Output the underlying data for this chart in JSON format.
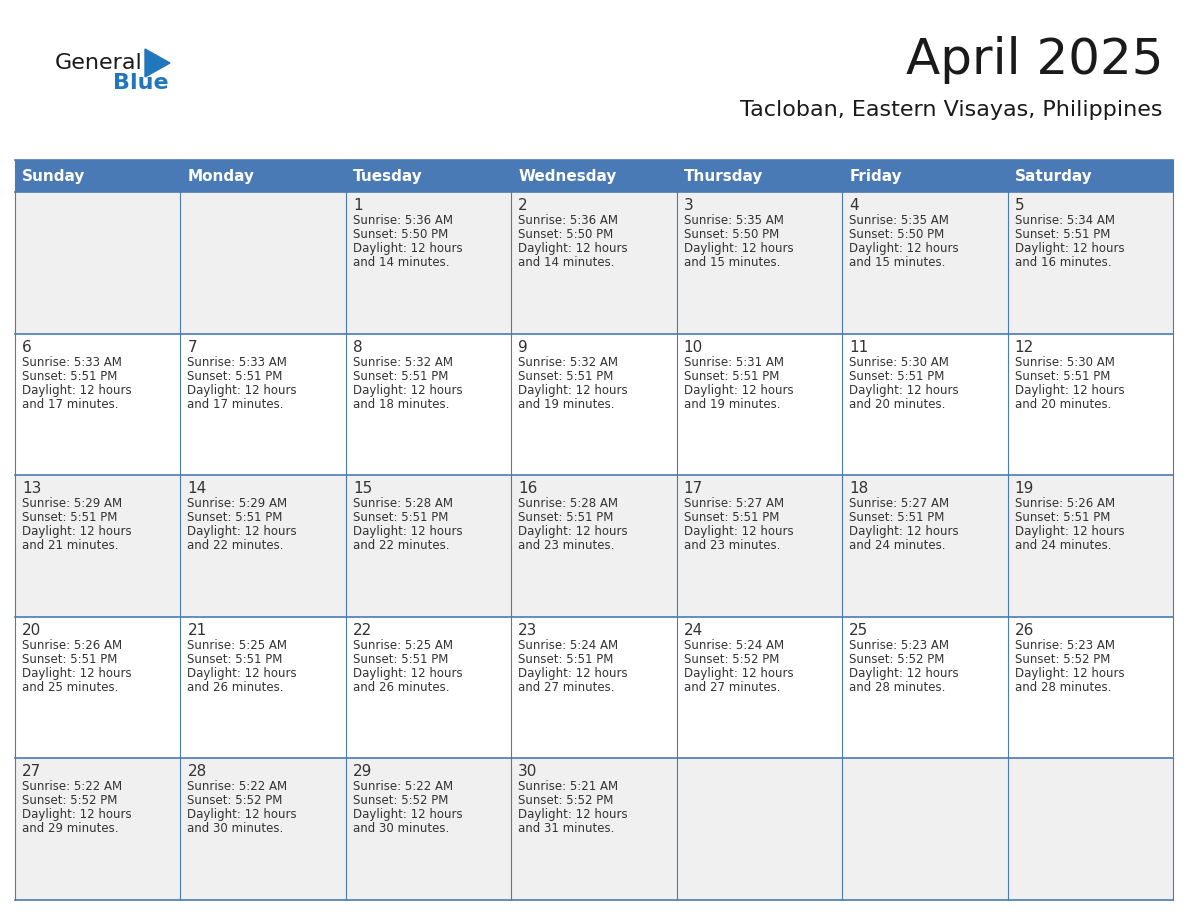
{
  "title": "April 2025",
  "subtitle": "Tacloban, Eastern Visayas, Philippines",
  "header_bg": "#4a7ab5",
  "header_text": "#ffffff",
  "day_names": [
    "Sunday",
    "Monday",
    "Tuesday",
    "Wednesday",
    "Thursday",
    "Friday",
    "Saturday"
  ],
  "row_bg_light": "#f0f0f0",
  "row_bg_white": "#ffffff",
  "cell_border": "#4a7ab5",
  "text_color": "#333333",
  "logo_black": "#1a1a1a",
  "logo_blue": "#2176bc",
  "calendar_data": [
    [
      null,
      null,
      {
        "day": 1,
        "sunrise": "5:36 AM",
        "sunset": "5:50 PM",
        "minutes": "14"
      },
      {
        "day": 2,
        "sunrise": "5:36 AM",
        "sunset": "5:50 PM",
        "minutes": "14"
      },
      {
        "day": 3,
        "sunrise": "5:35 AM",
        "sunset": "5:50 PM",
        "minutes": "15"
      },
      {
        "day": 4,
        "sunrise": "5:35 AM",
        "sunset": "5:50 PM",
        "minutes": "15"
      },
      {
        "day": 5,
        "sunrise": "5:34 AM",
        "sunset": "5:51 PM",
        "minutes": "16"
      }
    ],
    [
      {
        "day": 6,
        "sunrise": "5:33 AM",
        "sunset": "5:51 PM",
        "minutes": "17"
      },
      {
        "day": 7,
        "sunrise": "5:33 AM",
        "sunset": "5:51 PM",
        "minutes": "17"
      },
      {
        "day": 8,
        "sunrise": "5:32 AM",
        "sunset": "5:51 PM",
        "minutes": "18"
      },
      {
        "day": 9,
        "sunrise": "5:32 AM",
        "sunset": "5:51 PM",
        "minutes": "19"
      },
      {
        "day": 10,
        "sunrise": "5:31 AM",
        "sunset": "5:51 PM",
        "minutes": "19"
      },
      {
        "day": 11,
        "sunrise": "5:30 AM",
        "sunset": "5:51 PM",
        "minutes": "20"
      },
      {
        "day": 12,
        "sunrise": "5:30 AM",
        "sunset": "5:51 PM",
        "minutes": "20"
      }
    ],
    [
      {
        "day": 13,
        "sunrise": "5:29 AM",
        "sunset": "5:51 PM",
        "minutes": "21"
      },
      {
        "day": 14,
        "sunrise": "5:29 AM",
        "sunset": "5:51 PM",
        "minutes": "22"
      },
      {
        "day": 15,
        "sunrise": "5:28 AM",
        "sunset": "5:51 PM",
        "minutes": "22"
      },
      {
        "day": 16,
        "sunrise": "5:28 AM",
        "sunset": "5:51 PM",
        "minutes": "23"
      },
      {
        "day": 17,
        "sunrise": "5:27 AM",
        "sunset": "5:51 PM",
        "minutes": "23"
      },
      {
        "day": 18,
        "sunrise": "5:27 AM",
        "sunset": "5:51 PM",
        "minutes": "24"
      },
      {
        "day": 19,
        "sunrise": "5:26 AM",
        "sunset": "5:51 PM",
        "minutes": "24"
      }
    ],
    [
      {
        "day": 20,
        "sunrise": "5:26 AM",
        "sunset": "5:51 PM",
        "minutes": "25"
      },
      {
        "day": 21,
        "sunrise": "5:25 AM",
        "sunset": "5:51 PM",
        "minutes": "26"
      },
      {
        "day": 22,
        "sunrise": "5:25 AM",
        "sunset": "5:51 PM",
        "minutes": "26"
      },
      {
        "day": 23,
        "sunrise": "5:24 AM",
        "sunset": "5:51 PM",
        "minutes": "27"
      },
      {
        "day": 24,
        "sunrise": "5:24 AM",
        "sunset": "5:52 PM",
        "minutes": "27"
      },
      {
        "day": 25,
        "sunrise": "5:23 AM",
        "sunset": "5:52 PM",
        "minutes": "28"
      },
      {
        "day": 26,
        "sunrise": "5:23 AM",
        "sunset": "5:52 PM",
        "minutes": "28"
      }
    ],
    [
      {
        "day": 27,
        "sunrise": "5:22 AM",
        "sunset": "5:52 PM",
        "minutes": "29"
      },
      {
        "day": 28,
        "sunrise": "5:22 AM",
        "sunset": "5:52 PM",
        "minutes": "30"
      },
      {
        "day": 29,
        "sunrise": "5:22 AM",
        "sunset": "5:52 PM",
        "minutes": "30"
      },
      {
        "day": 30,
        "sunrise": "5:21 AM",
        "sunset": "5:52 PM",
        "minutes": "31"
      },
      null,
      null,
      null
    ]
  ]
}
